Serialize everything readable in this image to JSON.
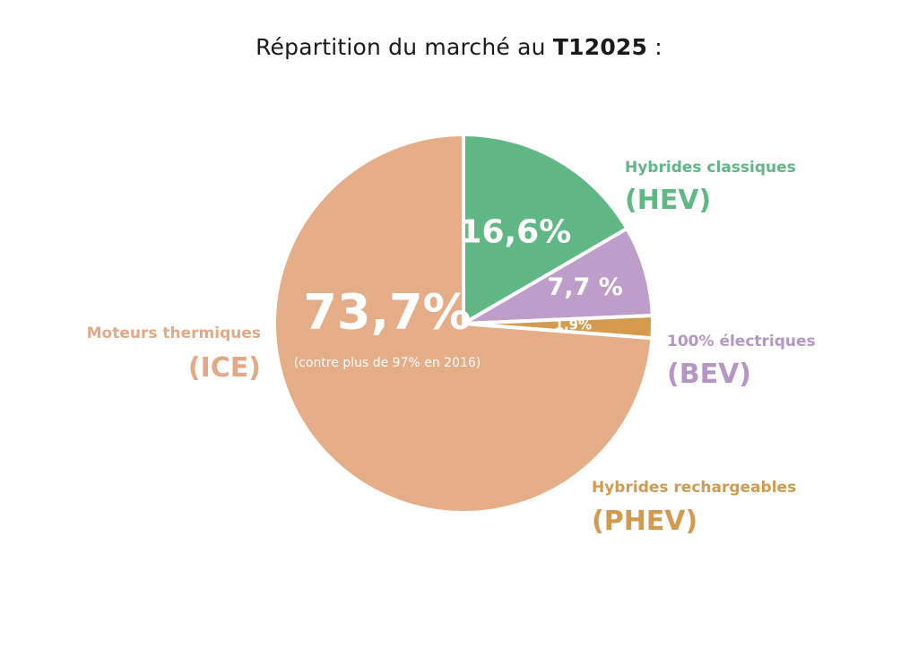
{
  "title": {
    "prefix": "Répartition du marché au ",
    "period": "T12025",
    "suffix": " :"
  },
  "chart_data": {
    "type": "pie",
    "title": "Répartition du marché au T12025 :",
    "slices": [
      {
        "key": "hev",
        "name": "Hybrides classiques",
        "code": "(HEV)",
        "value": 16.6,
        "value_label": "16,6%",
        "color": "#5fb784",
        "label_color": "#5fb784"
      },
      {
        "key": "bev",
        "name": "100% électriques",
        "code": "(BEV)",
        "value": 7.7,
        "value_label": "7,7 %",
        "color": "#bf9dca",
        "label_color": "#b495c4"
      },
      {
        "key": "phev",
        "name": "Hybrides rechargeables",
        "code": "(PHEV)",
        "value": 1.9,
        "value_label": "1,9%",
        "color": "#d49b4f",
        "label_color": "#d29a4e"
      },
      {
        "key": "ice",
        "name": "Moteurs thermiques",
        "code": "(ICE)",
        "value": 73.7,
        "value_label": "73,7%",
        "note": "(contre plus de 97% en 2016)",
        "color": "#e5ad87",
        "label_color": "#e3a987"
      }
    ]
  }
}
